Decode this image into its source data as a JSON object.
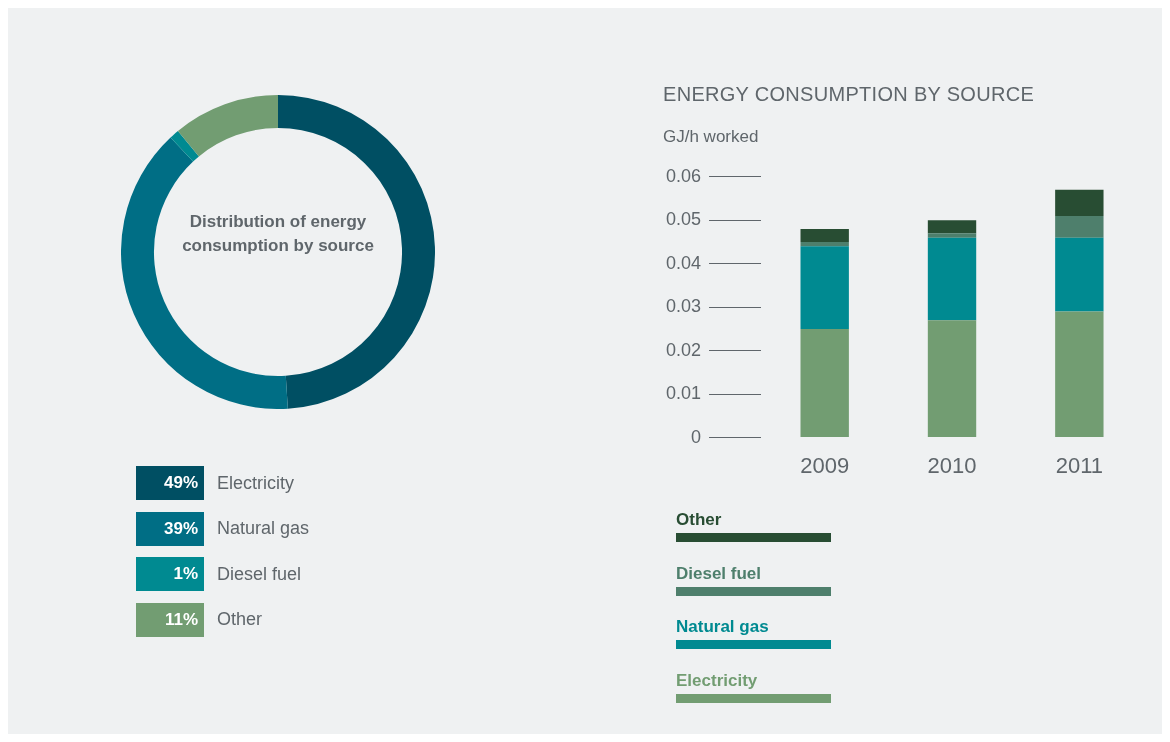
{
  "chart_data": [
    {
      "type": "donut",
      "title": "Distribution of energy consumption by source",
      "categories": [
        "Electricity",
        "Natural gas",
        "Diesel fuel",
        "Other"
      ],
      "values": [
        49,
        39,
        1,
        11
      ],
      "colors": [
        "#004f63",
        "#006e85",
        "#008a91",
        "#729d72"
      ],
      "value_labels": [
        "49%",
        "39%",
        "1%",
        "11%"
      ],
      "legend": "bottom"
    },
    {
      "type": "bar",
      "title": "ENERGY CONSUMPTION BY SOURCE",
      "ylabel": "GJ/h worked",
      "categories": [
        "2009",
        "2010",
        "2011"
      ],
      "stacked": true,
      "series": [
        {
          "name": "Electricity",
          "color": "#729d72",
          "values": [
            0.025,
            0.027,
            0.029
          ]
        },
        {
          "name": "Natural gas",
          "color": "#008a91",
          "values": [
            0.019,
            0.019,
            0.017
          ]
        },
        {
          "name": "Diesel fuel",
          "color": "#4e7f6c",
          "values": [
            0.001,
            0.001,
            0.005
          ]
        },
        {
          "name": "Other",
          "color": "#284d33",
          "values": [
            0.003,
            0.003,
            0.006
          ]
        }
      ],
      "ylim": [
        0,
        0.06
      ],
      "yticks": [
        0,
        0.01,
        0.02,
        0.03,
        0.04,
        0.05,
        0.06
      ],
      "legend": "bottom"
    }
  ]
}
